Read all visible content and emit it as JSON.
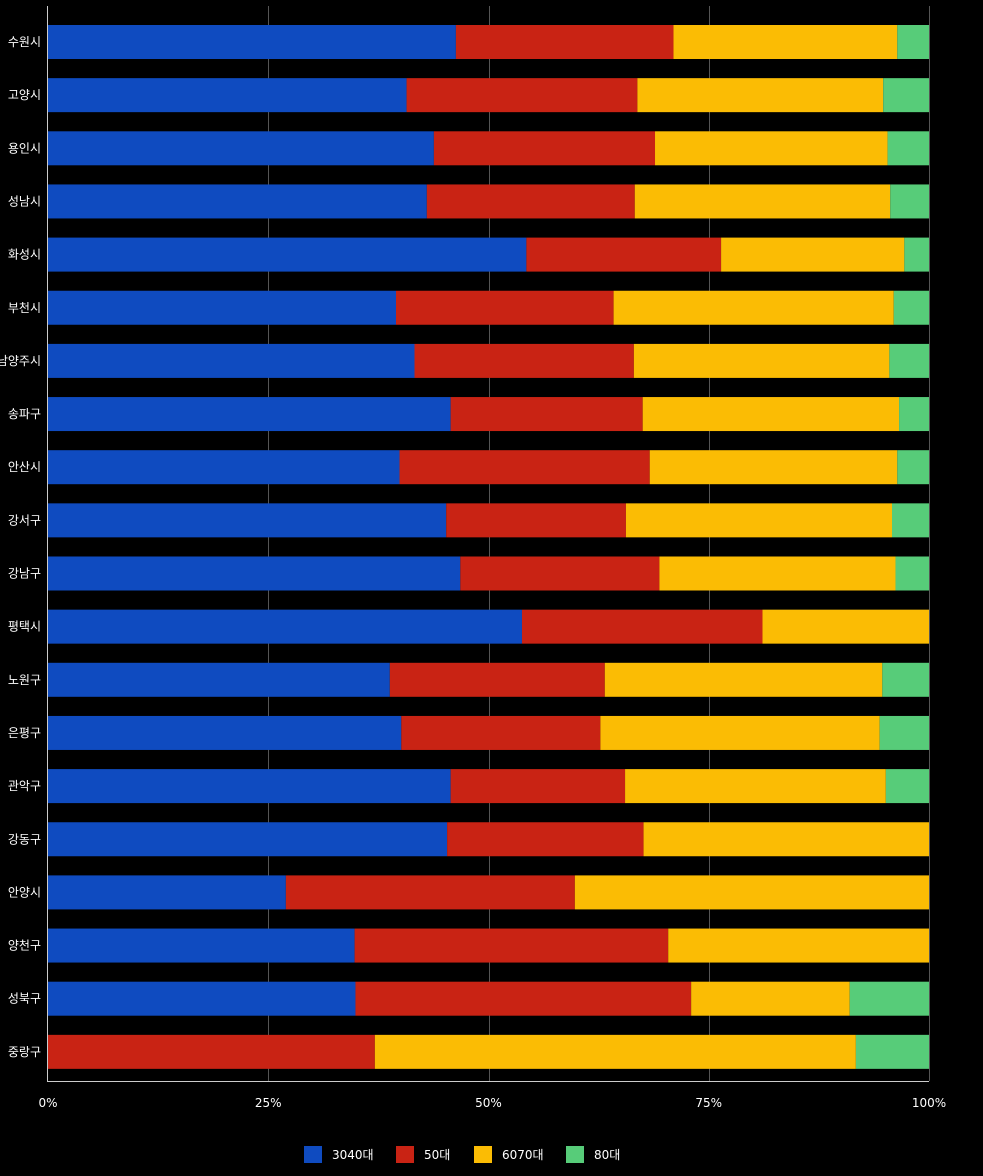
{
  "chart_data": {
    "type": "bar",
    "orientation": "horizontal",
    "stacked": "percent",
    "categories": [
      "수원시",
      "고양시",
      "용인시",
      "성남시",
      "화성시",
      "부천시",
      "남양주시",
      "송파구",
      "안산시",
      "강서구",
      "강남구",
      "평택시",
      "노원구",
      "은평구",
      "관악구",
      "강동구",
      "안양시",
      "양천구",
      "성북구",
      "중랑구"
    ],
    "series": [
      {
        "name": "3040대",
        "color": "#0f4bc0",
        "values": [
          46.3,
          40.7,
          43.8,
          43.0,
          54.3,
          39.5,
          41.6,
          45.7,
          39.9,
          45.2,
          46.8,
          53.8,
          38.8,
          40.1,
          45.7,
          45.3,
          27.0,
          34.8,
          34.9,
          0
        ]
      },
      {
        "name": "50대",
        "color": "#c92314",
        "values": [
          24.7,
          26.2,
          25.1,
          23.6,
          22.1,
          24.7,
          24.9,
          21.8,
          28.4,
          20.4,
          22.6,
          27.3,
          24.4,
          22.6,
          19.8,
          22.3,
          32.8,
          35.6,
          38.1,
          37.1
        ]
      },
      {
        "name": "6070대",
        "color": "#fbbc04",
        "values": [
          25.4,
          27.9,
          26.4,
          29.0,
          20.8,
          31.8,
          29.0,
          29.1,
          28.1,
          30.2,
          26.8,
          18.9,
          31.5,
          31.7,
          29.6,
          32.4,
          40.2,
          29.6,
          18.0,
          54.6
        ]
      },
      {
        "name": "80대",
        "color": "#57cc79",
        "values": [
          3.6,
          5.2,
          4.7,
          4.4,
          2.8,
          4.0,
          4.5,
          3.4,
          3.6,
          4.2,
          3.8,
          0,
          5.3,
          5.6,
          4.9,
          0,
          0,
          0,
          9.0,
          8.3
        ]
      }
    ],
    "x_ticks": [
      "0%",
      "25%",
      "50%",
      "75%",
      "100%"
    ],
    "xlim": [
      0,
      100
    ],
    "grid": true,
    "legend_position": "bottom"
  }
}
